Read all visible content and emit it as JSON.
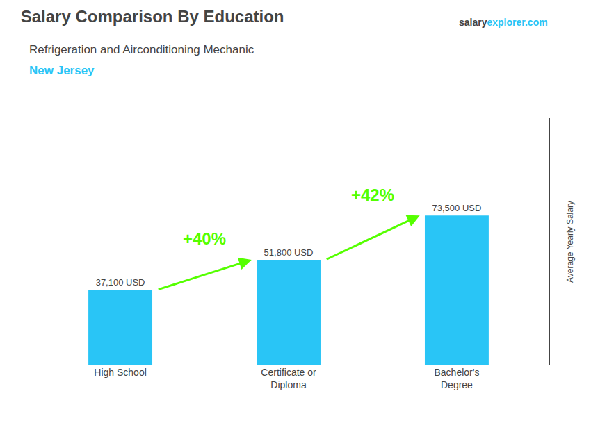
{
  "chart_data": {
    "type": "bar",
    "title": "Salary Comparison By Education",
    "subtitle": [
      {
        "text": "Refrigeration and Airconditioning Mechanic"
      },
      {
        "text": "New Jersey",
        "color": "#29c5f6"
      }
    ],
    "source": [
      {
        "text": "salary"
      },
      {
        "text": "explorer.com",
        "color": "#29c5f6"
      }
    ],
    "ylabel": "Average Yearly Salary",
    "categories": [
      "High School",
      "Certificate or\nDiploma",
      "Bachelor's\nDegree"
    ],
    "values": [
      37100,
      51800,
      73500
    ],
    "value_labels": [
      "37,100 USD",
      "51,800 USD",
      "73,500 USD"
    ],
    "data_labels": true,
    "color": "#29c5f6",
    "annotations": [
      {
        "text": "+40%",
        "color": "#55ff00"
      },
      {
        "text": "+42%",
        "color": "#55ff00"
      }
    ],
    "ylim": [
      0,
      121275
    ],
    "tick_labels": "x",
    "grid": false
  }
}
